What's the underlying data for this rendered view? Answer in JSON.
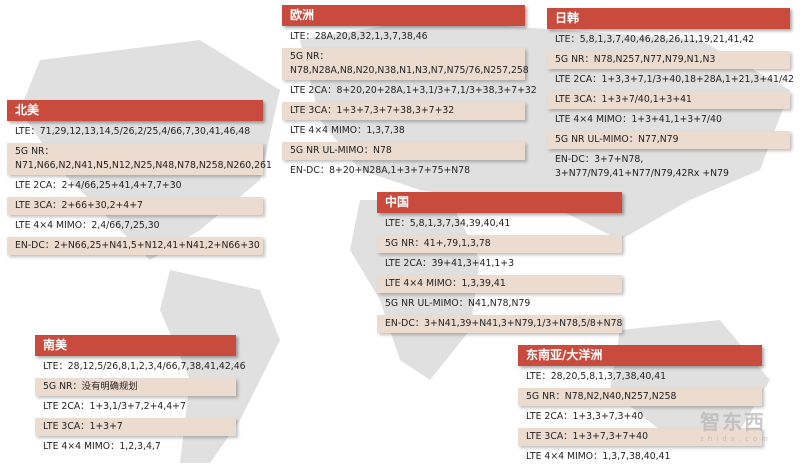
{
  "colors": {
    "header": "#c94b3e",
    "row_alt": "#ecdbcf",
    "map": "#dcdcdc"
  },
  "regions": [
    {
      "id": "north-america",
      "title": "北美",
      "rows": [
        "LTE：71,29,12,13,14,5/26,2/25,4/66,7,30,41,46,48",
        "5G NR：N71,N66,N2,N41,N5,N12,N25,N48,N78,N258,N260,261",
        "LTE 2CA：2+4/66,25+41,4+7,7+30",
        "LTE 3CA：2+66+30,2+4+7",
        "LTE 4×4 MIMO：2,4/66,7,25,30",
        "EN-DC：2+N66,25+N41,5+N12,41+N41,2+N66+30"
      ]
    },
    {
      "id": "europe",
      "title": "欧洲",
      "rows": [
        "LTE：28A,20,8,32,1,3,7,38,46",
        "5G NR：N78,N28A,N8,N20,N38,N1,N3,N7,N75/76,N257,258",
        "LTE 2CA：8+20,20+28A,1+3,1/3+7,1/3+38,3+7+32",
        "LTE 3CA：1+3+7,3+7+38,3+7+32",
        "LTE 4×4 MIMO：1,3,7,38",
        "5G NR UL-MIMO：N78",
        "EN-DC：8+20+N28A,1+3+7+75+N78"
      ]
    },
    {
      "id": "japan-korea",
      "title": "日韩",
      "rows": [
        "LTE：5,8,1,3,7,40,46,28,26,11,19,21,41,42",
        "5G NR：N78,N257,N77,N79,N1,N3",
        "LTE 2CA：1+3,3+7,1/3+40,18+28A,1+21,3+41/42",
        "LTE 3CA：1+3+7/40,1+3+41",
        "LTE 4×4 MIMO：1+3+41,1+3+7/40",
        "5G NR UL-MIMO：N77,N79",
        "EN-DC：3+7+N78, 3+N77/N79,41+N77/N79,42Rx +N79"
      ]
    },
    {
      "id": "china",
      "title": "中国",
      "rows": [
        "LTE：5,8,1,3,7,34,39,40,41",
        "5G NR：41+,79,1,3,78",
        "LTE 2CA：39+41,3+41,1+3",
        "LTE 4×4 MIMO：1,3,39,41",
        "5G NR UL-MIMO：N41,N78,N79",
        "EN-DC：3+N41,39+N41,3+N79,1/3+N78,5/8+N78"
      ]
    },
    {
      "id": "south-america",
      "title": "南美",
      "rows": [
        "LTE：28,12,5/26,8,1,2,3,4/66,7,38,41,42,46",
        "5G NR：没有明确规划",
        "LTE 2CA：1+3,1/3+7,2+4,4+7",
        "LTE 3CA：1+3+7",
        "LTE 4×4 MIMO：1,2,3,4,7"
      ]
    },
    {
      "id": "southeast-asia-oceania",
      "title": "东南亚/大洋洲",
      "rows": [
        "LTE：28,20,5,8,1,3,7,38,40,41",
        "5G NR：N78,N2,N40,N257,N258",
        "LTE 2CA：1+3,3+7,3+40",
        "LTE 3CA：1+3+7,3+7+40",
        "LTE 4×4 MIMO：1,3,7,38,40,41"
      ]
    }
  ],
  "watermark": {
    "logo": "智东西",
    "site": "zhidx.com"
  }
}
